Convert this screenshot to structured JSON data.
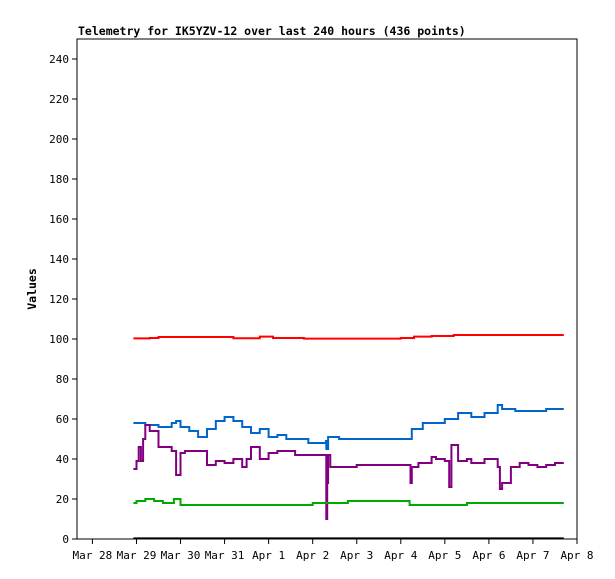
{
  "chart_data": {
    "type": "line",
    "title": "Telemetry for IK5YZV-12 over last 240 hours (436 points)",
    "xlabel": "",
    "ylabel": "Values",
    "ylim": [
      0,
      250
    ],
    "yticks": [
      0,
      20,
      40,
      60,
      80,
      100,
      120,
      140,
      160,
      180,
      200,
      220,
      240
    ],
    "xlim": [
      0,
      10
    ],
    "xticks": [
      {
        "x": 0,
        "label": "Mar 28"
      },
      {
        "x": 1,
        "label": "Mar 29"
      },
      {
        "x": 2,
        "label": "Mar 30"
      },
      {
        "x": 3,
        "label": "Mar 31"
      },
      {
        "x": 4,
        "label": "Apr 1"
      },
      {
        "x": 5,
        "label": "Apr 2"
      },
      {
        "x": 6,
        "label": "Apr 3"
      },
      {
        "x": 7,
        "label": "Apr 4"
      },
      {
        "x": 8,
        "label": "Apr 5"
      },
      {
        "x": 9,
        "label": "Apr 6"
      },
      {
        "x": 10,
        "label": "Apr 7"
      },
      {
        "x": 11,
        "label": "Apr 8"
      }
    ],
    "grid": false,
    "series": [
      {
        "color": "#ff0000",
        "x": [
          0.93,
          1.3,
          1.5,
          2.0,
          2.4,
          2.8,
          3.2,
          3.6,
          3.8,
          4.1,
          4.8,
          5.5,
          6.0,
          6.5,
          7.0,
          7.3,
          7.7,
          8.2,
          8.7,
          9.2,
          9.7,
          10.2,
          10.7
        ],
        "y": [
          100.3,
          100.5,
          101,
          101,
          101,
          101,
          100.4,
          100.4,
          101.2,
          100.5,
          100.2,
          100.2,
          100.2,
          100.2,
          100.5,
          101.2,
          101.5,
          102,
          102,
          102,
          102,
          102,
          102
        ]
      },
      {
        "color": "#0066cc",
        "x": [
          0.93,
          1.2,
          1.5,
          1.6,
          1.8,
          1.9,
          2.0,
          2.2,
          2.4,
          2.6,
          2.8,
          3.0,
          3.2,
          3.4,
          3.6,
          3.8,
          4.0,
          4.2,
          4.4,
          4.6,
          4.9,
          5.1,
          5.3,
          5.31,
          5.35,
          5.6,
          6.0,
          6.5,
          7.2,
          7.25,
          7.5,
          7.7,
          8.0,
          8.3,
          8.6,
          8.9,
          9.2,
          9.3,
          9.4,
          9.6,
          9.8,
          10.0,
          10.3,
          10.5,
          10.7
        ],
        "y": [
          58,
          57,
          56,
          56,
          58,
          59,
          56,
          54,
          51,
          55,
          59,
          61,
          59,
          56,
          53,
          55,
          51,
          52,
          50,
          50,
          48,
          48,
          49,
          45,
          51,
          50,
          50,
          50,
          50,
          55,
          58,
          58,
          60,
          63,
          61,
          63,
          67,
          65,
          65,
          64,
          64,
          64,
          65,
          65,
          65
        ]
      },
      {
        "color": "#800080",
        "x": [
          0.93,
          1.0,
          1.05,
          1.1,
          1.15,
          1.2,
          1.3,
          1.5,
          1.8,
          1.9,
          2.0,
          2.1,
          2.4,
          2.6,
          2.8,
          3.0,
          3.2,
          3.4,
          3.5,
          3.6,
          3.8,
          4.0,
          4.2,
          4.4,
          4.6,
          4.9,
          5.0,
          5.2,
          5.3,
          5.31,
          5.33,
          5.35,
          5.4,
          5.6,
          5.8,
          6.0,
          6.5,
          7.0,
          7.2,
          7.22,
          7.25,
          7.4,
          7.7,
          7.8,
          8.0,
          8.1,
          8.15,
          8.3,
          8.5,
          8.6,
          8.9,
          9.0,
          9.2,
          9.25,
          9.3,
          9.5,
          9.7,
          9.9,
          10.1,
          10.3,
          10.5,
          10.7
        ],
        "y": [
          35,
          39,
          46,
          39,
          50,
          57,
          54,
          46,
          44,
          32,
          43,
          44,
          44,
          37,
          39,
          38,
          40,
          36,
          40,
          46,
          40,
          43,
          44,
          44,
          42,
          42,
          42,
          42,
          42,
          10,
          28,
          42,
          36,
          36,
          36,
          37,
          37,
          37,
          37,
          28,
          36,
          38,
          41,
          40,
          39,
          26,
          47,
          39,
          40,
          38,
          40,
          40,
          36,
          25,
          28,
          36,
          38,
          37,
          36,
          37,
          38,
          38
        ]
      },
      {
        "color": "#00aa00",
        "x": [
          0.93,
          1.0,
          1.2,
          1.4,
          1.6,
          1.8,
          1.85,
          2.0,
          2.5,
          3.0,
          3.5,
          4.0,
          4.5,
          5.0,
          5.5,
          5.8,
          6.0,
          6.5,
          7.0,
          7.2,
          7.5,
          8.0,
          8.5,
          9.0,
          9.5,
          10.0,
          10.5,
          10.7
        ],
        "y": [
          18,
          19,
          20,
          19,
          18,
          18,
          20,
          17,
          17,
          17,
          17,
          17,
          17,
          18,
          18,
          19,
          19,
          19,
          19,
          17,
          17,
          17,
          18,
          18,
          18,
          18,
          18,
          18
        ]
      },
      {
        "color": "#000000",
        "x": [
          0.93,
          10.7
        ],
        "y": [
          0.3,
          0.3
        ]
      }
    ]
  }
}
